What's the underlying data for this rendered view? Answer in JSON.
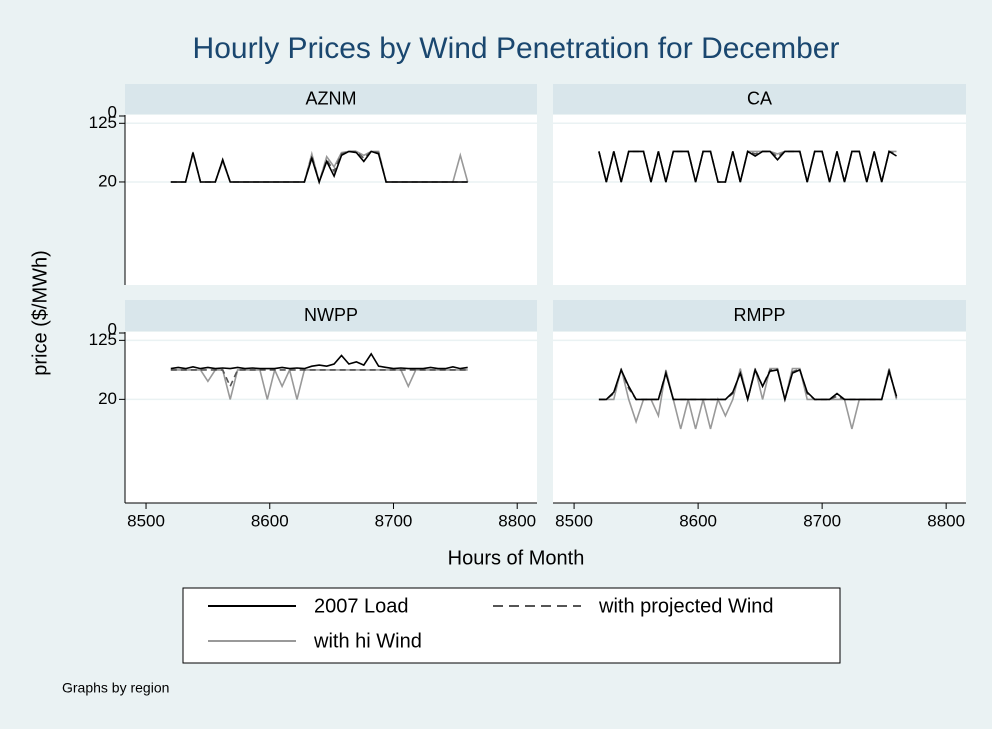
{
  "chart_data": {
    "type": "line",
    "title": "Hourly Prices by Wind Penetration for December",
    "x_label": "Hours of Month",
    "y_label": "price ($/MWh)",
    "note": "Graphs by region",
    "y_top_label": "0",
    "log_y": true,
    "grid": true,
    "legend_position": "bottom",
    "xlim": [
      8483,
      8816
    ],
    "xticks": [
      8500,
      8600,
      8700,
      8800
    ],
    "ylim": [
      0.8,
      162
    ],
    "yticks": [
      125,
      20
    ],
    "x": [
      8520,
      8526,
      8532,
      8538,
      8544,
      8550,
      8556,
      8562,
      8568,
      8574,
      8580,
      8586,
      8592,
      8598,
      8604,
      8610,
      8616,
      8622,
      8628,
      8634,
      8640,
      8646,
      8652,
      8658,
      8664,
      8670,
      8676,
      8682,
      8688,
      8694,
      8700,
      8706,
      8712,
      8718,
      8724,
      8730,
      8736,
      8742,
      8748,
      8754,
      8760
    ],
    "series": [
      {
        "name": "2007 Load",
        "color": "#000000",
        "dash": false
      },
      {
        "name": "with projected Wind",
        "color": "#555555",
        "dash": true
      },
      {
        "name": "with hi Wind",
        "color": "#999999",
        "dash": false
      }
    ],
    "panels": [
      {
        "title": "AZNM",
        "series": [
          {
            "values": [
              20,
              20,
              20,
              50,
              20,
              20,
              20,
              40,
              20,
              20,
              20,
              20,
              20,
              20,
              20,
              20,
              20,
              20,
              20,
              42,
              20,
              38,
              24,
              46,
              52,
              50,
              38,
              52,
              48,
              20,
              20,
              20,
              20,
              20,
              20,
              20,
              20,
              20,
              20,
              20,
              20
            ]
          },
          {
            "values": [
              20,
              20,
              20,
              50,
              20,
              20,
              20,
              40,
              20,
              20,
              20,
              20,
              20,
              20,
              20,
              20,
              20,
              20,
              20,
              45,
              20,
              40,
              28,
              48,
              52,
              52,
              42,
              52,
              50,
              20,
              20,
              20,
              20,
              20,
              20,
              20,
              20,
              20,
              20,
              20,
              20
            ]
          },
          {
            "values": [
              20,
              20,
              20,
              48,
              20,
              20,
              20,
              38,
              20,
              20,
              20,
              20,
              20,
              20,
              20,
              20,
              20,
              20,
              20,
              48,
              20,
              44,
              32,
              50,
              52,
              52,
              46,
              52,
              52,
              20,
              20,
              20,
              20,
              20,
              20,
              20,
              20,
              20,
              20,
              46,
              20
            ]
          }
        ]
      },
      {
        "title": "CA",
        "series": [
          {
            "values": [
              52,
              20,
              52,
              20,
              52,
              52,
              52,
              20,
              52,
              20,
              52,
              52,
              52,
              20,
              52,
              52,
              20,
              20,
              52,
              20,
              52,
              45,
              52,
              52,
              40,
              52,
              52,
              52,
              20,
              52,
              52,
              20,
              52,
              20,
              52,
              52,
              20,
              52,
              20,
              52,
              45
            ]
          },
          {
            "values": [
              52,
              20,
              52,
              20,
              52,
              52,
              52,
              20,
              52,
              20,
              52,
              52,
              52,
              20,
              52,
              52,
              20,
              20,
              52,
              20,
              52,
              48,
              52,
              52,
              44,
              52,
              52,
              52,
              20,
              52,
              52,
              20,
              52,
              20,
              52,
              52,
              20,
              52,
              20,
              52,
              48
            ]
          },
          {
            "values": [
              52,
              20,
              52,
              20,
              52,
              52,
              52,
              20,
              52,
              20,
              52,
              52,
              52,
              20,
              52,
              52,
              20,
              20,
              52,
              20,
              52,
              52,
              52,
              52,
              48,
              52,
              52,
              52,
              20,
              52,
              52,
              20,
              52,
              20,
              52,
              52,
              20,
              52,
              20,
              52,
              52
            ]
          }
        ]
      },
      {
        "title": "NWPP",
        "series": [
          {
            "values": [
              52,
              54,
              52,
              55,
              52,
              54,
              52,
              53,
              52,
              54,
              52,
              53,
              52,
              52,
              52,
              54,
              52,
              53,
              52,
              56,
              58,
              56,
              60,
              78,
              60,
              64,
              58,
              82,
              56,
              54,
              52,
              53,
              52,
              52,
              52,
              54,
              52,
              52,
              55,
              52,
              54
            ]
          },
          {
            "values": [
              50,
              50,
              50,
              50,
              50,
              50,
              50,
              50,
              30,
              50,
              50,
              50,
              50,
              50,
              50,
              50,
              50,
              50,
              50,
              50,
              50,
              50,
              50,
              50,
              50,
              50,
              50,
              50,
              50,
              50,
              50,
              50,
              50,
              50,
              50,
              50,
              50,
              50,
              50,
              50,
              50
            ]
          },
          {
            "values": [
              50,
              50,
              50,
              50,
              50,
              35,
              50,
              50,
              20,
              50,
              50,
              50,
              50,
              20,
              50,
              30,
              50,
              20,
              50,
              50,
              50,
              50,
              50,
              50,
              50,
              50,
              50,
              50,
              50,
              50,
              50,
              50,
              30,
              50,
              50,
              50,
              50,
              50,
              50,
              50,
              50
            ]
          }
        ]
      },
      {
        "title": "RMPP",
        "series": [
          {
            "values": [
              20,
              20,
              25,
              50,
              30,
              20,
              20,
              20,
              20,
              45,
              20,
              20,
              20,
              20,
              20,
              20,
              20,
              20,
              25,
              45,
              20,
              50,
              30,
              48,
              50,
              20,
              45,
              50,
              25,
              20,
              20,
              20,
              24,
              20,
              20,
              20,
              20,
              20,
              20,
              48,
              22
            ]
          },
          {
            "values": [
              20,
              20,
              24,
              50,
              28,
              20,
              20,
              20,
              20,
              46,
              20,
              20,
              20,
              20,
              20,
              20,
              20,
              20,
              24,
              47,
              20,
              51,
              30,
              50,
              51,
              20,
              47,
              51,
              24,
              20,
              20,
              20,
              22,
              20,
              20,
              20,
              20,
              20,
              20,
              50,
              21
            ]
          },
          {
            "values": [
              20,
              20,
              20,
              52,
              20,
              10,
              20,
              20,
              12,
              50,
              20,
              8,
              20,
              8,
              20,
              8,
              20,
              12,
              20,
              52,
              20,
              52,
              20,
              52,
              52,
              20,
              52,
              52,
              20,
              20,
              20,
              20,
              20,
              20,
              8,
              20,
              20,
              20,
              20,
              52,
              20
            ]
          }
        ]
      }
    ]
  }
}
